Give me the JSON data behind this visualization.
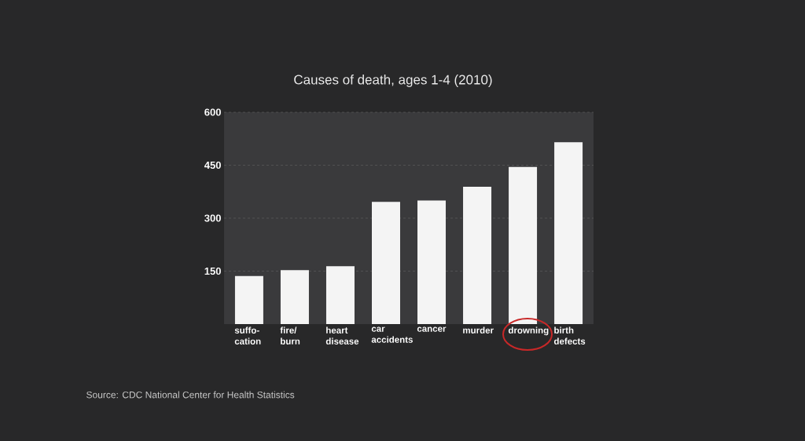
{
  "chart_data": {
    "type": "bar",
    "title": "Causes of death, ages 1-4 (2010)",
    "categories": [
      "suffo- cation",
      "fire/ burn",
      "heart disease",
      "car accidents",
      "cancer",
      "murder",
      "drowning",
      "birth defects"
    ],
    "values": [
      136,
      153,
      164,
      346,
      350,
      389,
      445,
      515
    ],
    "color": "#f4f4f4",
    "ylim": [
      0,
      600
    ],
    "yticks": [
      150,
      300,
      450,
      600
    ],
    "grid": "y",
    "annotations": [
      "Source: CDC National Center for Health Statistics"
    ]
  }
}
